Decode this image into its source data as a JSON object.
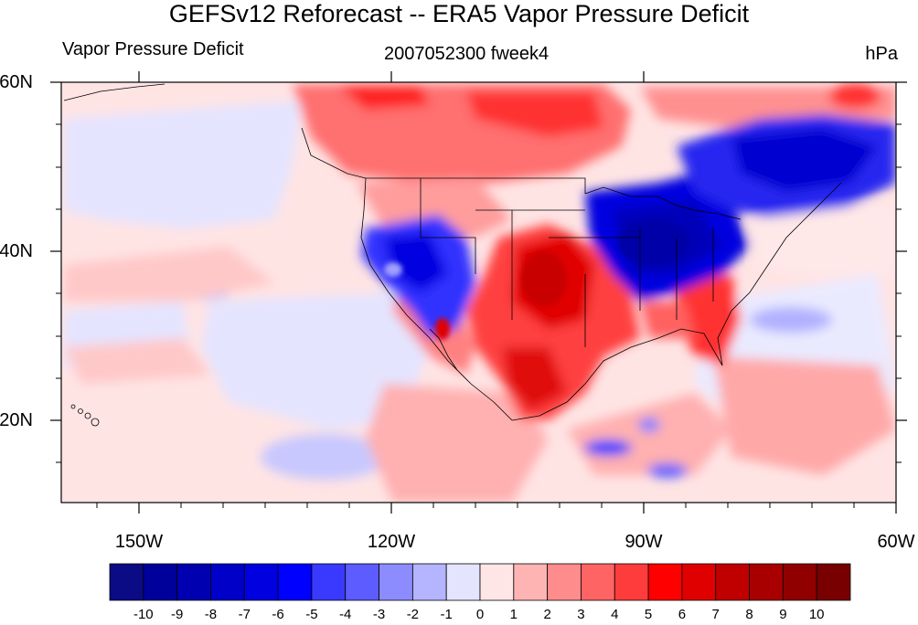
{
  "title": "GEFSv12 Reforecast -- ERA5 Vapor Pressure Deficit",
  "subtitle_left": "Vapor Pressure Deficit",
  "subtitle_center": "2007052300 fweek4",
  "subtitle_right": "hPa",
  "lat_ticks": [
    "60N",
    "40N",
    "20N"
  ],
  "lon_ticks": [
    "150W",
    "120W",
    "90W",
    "60W"
  ],
  "colorbar": {
    "labels": [
      "-10",
      "-9",
      "-8",
      "-7",
      "-6",
      "-5",
      "-4",
      "-3",
      "-2",
      "-1",
      "0",
      "1",
      "2",
      "3",
      "4",
      "5",
      "6",
      "7",
      "8",
      "9",
      "10"
    ],
    "colors": [
      "#0b0b86",
      "#00009a",
      "#0000b0",
      "#0000c8",
      "#0000e0",
      "#0000ff",
      "#3a3aff",
      "#5c5cff",
      "#8c8cff",
      "#b4b4ff",
      "#e4e4ff",
      "#ffe6e6",
      "#ffb4b4",
      "#ff8c8c",
      "#ff6464",
      "#ff3c3c",
      "#ff0000",
      "#e00000",
      "#c00000",
      "#a80000",
      "#900000",
      "#780000"
    ]
  }
}
